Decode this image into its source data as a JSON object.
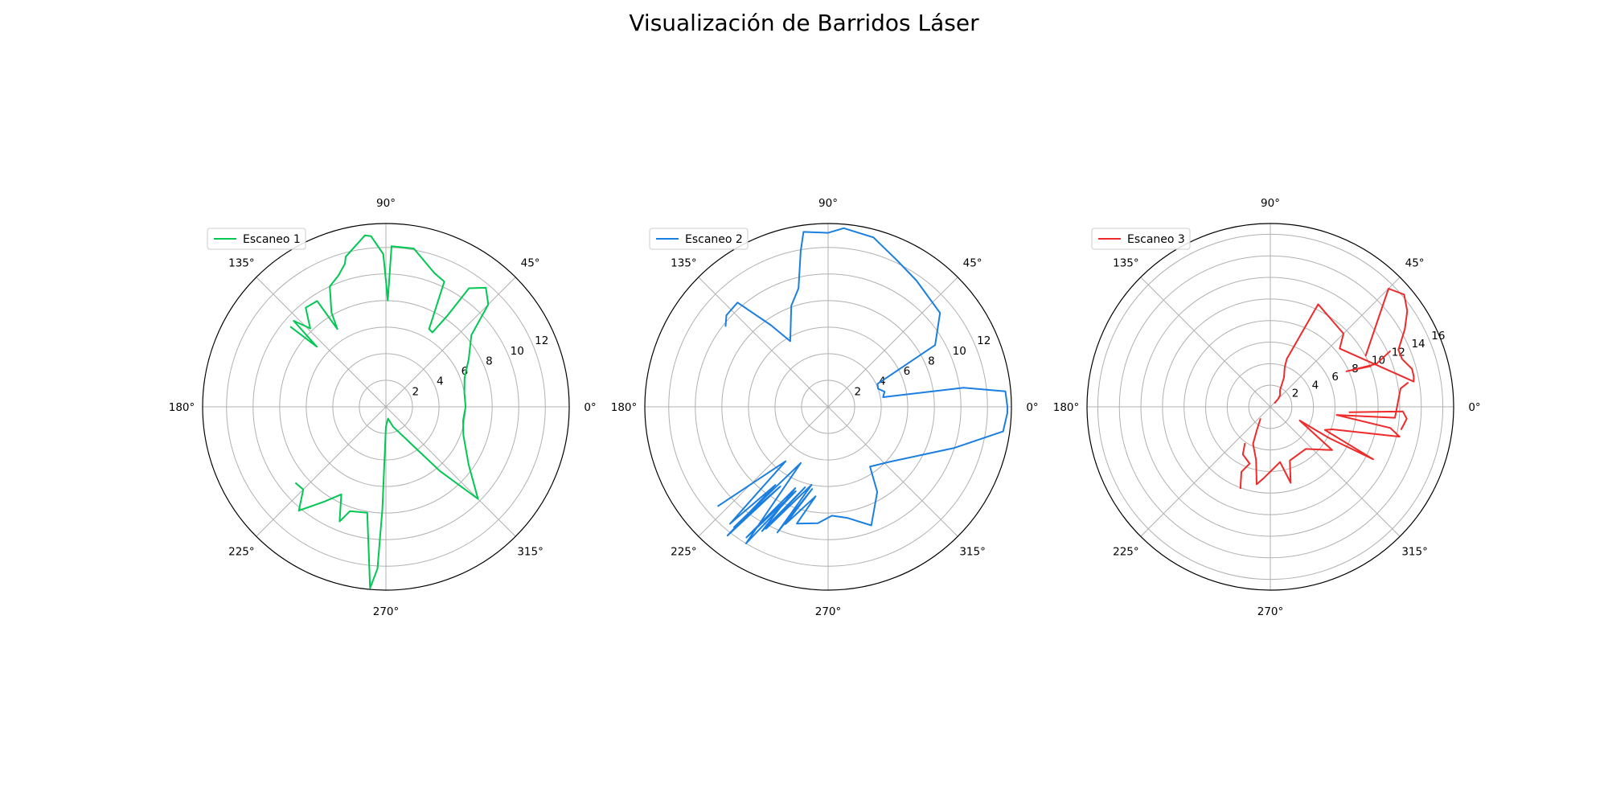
{
  "figure": {
    "title": "Visualización de Barridos Láser"
  },
  "chart_data": [
    {
      "type": "polar-line",
      "series": [
        {
          "name": "Escaneo 1",
          "color": "#00c853"
        }
      ],
      "theta_ticks": [
        "0°",
        "45°",
        "90°",
        "135°",
        "180°",
        "225°",
        "270°",
        "315°"
      ],
      "r_ticks": [
        "2",
        "4",
        "6",
        "8",
        "10",
        "12"
      ],
      "rlim": [
        0,
        13.8
      ],
      "grid": true,
      "legend": "upper-left",
      "points": [
        [
          0,
          6
        ],
        [
          10,
          6
        ],
        [
          20,
          6.3
        ],
        [
          30,
          7.2
        ],
        [
          40,
          8.4
        ],
        [
          45,
          10.9
        ],
        [
          50,
          11.7
        ],
        [
          55,
          10.9
        ],
        [
          56,
          8.3
        ],
        [
          58,
          6.6
        ],
        [
          61,
          6.7
        ],
        [
          65,
          10.4
        ],
        [
          70,
          10.7
        ],
        [
          80,
          12.1
        ],
        [
          88,
          12.1
        ],
        [
          89,
          8
        ],
        [
          90,
          9.5
        ],
        [
          91,
          11.5
        ],
        [
          95,
          12.9
        ],
        [
          97,
          13
        ],
        [
          105,
          11.7
        ],
        [
          106,
          11.2
        ],
        [
          110,
          10.5
        ],
        [
          115,
          10
        ],
        [
          120,
          8.2
        ],
        [
          122,
          6.9
        ],
        [
          123,
          9.5
        ],
        [
          129,
          9.6
        ],
        [
          134,
          8.2
        ],
        [
          137,
          9.5
        ],
        [
          139,
          6.9
        ],
        [
          140,
          9.4
        ],
        [
          null,
          null
        ],
        [
          220,
          8.9
        ],
        [
          225,
          8.8
        ],
        [
          230,
          10.2
        ],
        [
          237,
          8.5
        ],
        [
          243,
          7.4
        ],
        [
          248,
          9.3
        ],
        [
          251,
          8.3
        ],
        [
          260,
          8.1
        ],
        [
          265,
          13.7
        ],
        [
          267,
          12.2
        ],
        [
          268,
          7.7
        ],
        [
          270,
          1.5
        ],
        [
          280,
          0.9
        ],
        [
          290,
          1.6
        ],
        [
          310,
          6.3
        ],
        [
          315,
          9.8
        ],
        [
          325,
          7.6
        ],
        [
          340,
          6.2
        ],
        [
          350,
          5.9
        ],
        [
          360,
          6
        ]
      ]
    },
    {
      "type": "polar-line",
      "series": [
        {
          "name": "Escaneo 2",
          "color": "#1a7fe0"
        }
      ],
      "theta_ticks": [
        "0°",
        "45°",
        "90°",
        "135°",
        "180°",
        "225°",
        "270°",
        "315°"
      ],
      "r_ticks": [
        "2",
        "4",
        "6",
        "8",
        "10",
        "12"
      ],
      "rlim": [
        0,
        13.8
      ],
      "grid": true,
      "legend": "upper-left",
      "points": [
        [
          0,
          13.5
        ],
        [
          5,
          13.4
        ],
        [
          8,
          10.3
        ],
        [
          10,
          4.2
        ],
        [
          15,
          4.4
        ],
        [
          20,
          4
        ],
        [
          25,
          4.1
        ],
        [
          30,
          9.3
        ],
        [
          40,
          11
        ],
        [
          55,
          11.6
        ],
        [
          65,
          12.2
        ],
        [
          75,
          13.2
        ],
        [
          85,
          13.5
        ],
        [
          90,
          13.1
        ],
        [
          98,
          13.3
        ],
        [
          100,
          11.9
        ],
        [
          104,
          9.2
        ],
        [
          110,
          8.1
        ],
        [
          120,
          5.7
        ],
        [
          125,
          7.5
        ],
        [
          131,
          10.4
        ],
        [
          138,
          10.3
        ],
        [
          142,
          9.8
        ],
        [
          null,
          null
        ],
        [
          222,
          11.2
        ],
        [
          232,
          5.2
        ],
        [
          230,
          11.5
        ],
        [
          236,
          7.1
        ],
        [
          232,
          12.3
        ],
        [
          239,
          7
        ],
        [
          232,
          11.5
        ],
        [
          244,
          4.7
        ],
        [
          239,
          12
        ],
        [
          249,
          6.8
        ],
        [
          238,
          11.6
        ],
        [
          248,
          6.6
        ],
        [
          242,
          10.6
        ],
        [
          254,
          6.3
        ],
        [
          243,
          10.3
        ],
        [
          258,
          6
        ],
        [
          248,
          10.2
        ],
        [
          259,
          6.3
        ],
        [
          250,
          9.4
        ],
        [
          262,
          6.8
        ],
        [
          255,
          9.1
        ],
        [
          265,
          8.8
        ],
        [
          272,
          8.2
        ],
        [
          280,
          8.5
        ],
        [
          290,
          9.5
        ],
        [
          300,
          7.4
        ],
        [
          305,
          5.5
        ],
        [
          318,
          6.2
        ],
        [
          342,
          10
        ],
        [
          352,
          13.3
        ],
        [
          358,
          13.5
        ],
        [
          360,
          13.5
        ]
      ]
    },
    {
      "type": "polar-line",
      "series": [
        {
          "name": "Escaneo 3",
          "color": "#ee2a2a"
        }
      ],
      "theta_ticks": [
        "0°",
        "45°",
        "90°",
        "135°",
        "180°",
        "225°",
        "270°",
        "315°"
      ],
      "r_ticks": [
        "2",
        "4",
        "6",
        "8",
        "10",
        "12",
        "14",
        "16"
      ],
      "rlim": [
        0,
        17
      ],
      "grid": true,
      "legend": "upper-left",
      "points": [
        [
          null,
          null
        ],
        [
          -4,
          7.3
        ],
        [
          -2,
          12.3
        ],
        [
          -5,
          12.7
        ],
        [
          -10,
          12.3
        ],
        [
          null,
          null
        ],
        [
          10,
          13
        ],
        [
          8,
          12.2
        ],
        [
          -5,
          11.6
        ],
        [
          -7,
          6.2
        ],
        [
          -10,
          11.3
        ],
        [
          -13,
          12.3
        ],
        [
          -20,
          6.1
        ],
        [
          -23,
          5.5
        ],
        [
          -27,
          10.7
        ],
        [
          -28,
          6.2
        ],
        [
          -25,
          3
        ],
        [
          -35,
          7
        ],
        [
          -50,
          5.1
        ],
        [
          -70,
          5.3
        ],
        [
          -75,
          7.3
        ],
        [
          -80,
          5.2
        ],
        [
          -95,
          6.6
        ],
        [
          -100,
          7.3
        ],
        [
          -105,
          5.1
        ],
        [
          -115,
          3.8
        ],
        [
          -120,
          2.5
        ],
        [
          -130,
          1.4
        ],
        [
          null,
          null
        ],
        [
          -110,
          8.1
        ],
        [
          -114,
          6.6
        ],
        [
          -110,
          5.6
        ],
        [
          -120,
          5.1
        ],
        [
          -125,
          4.1
        ],
        [
          null,
          null
        ],
        [
          22,
          10.1
        ],
        [
          25,
          7.8
        ],
        [
          22,
          10.6
        ],
        [
          25,
          12.3
        ],
        [
          null,
          null
        ],
        [
          28,
          10
        ],
        [
          45,
          15.5
        ],
        [
          40,
          16.2
        ],
        [
          35,
          15.5
        ],
        [
          30,
          14.4
        ],
        [
          24,
          13
        ],
        [
          20,
          13
        ],
        [
          15,
          13.6
        ],
        [
          12,
          13.6
        ],
        [
          10,
          13.5
        ],
        [
          40,
          8.4
        ],
        [
          45,
          9.6
        ],
        [
          65,
          10.5
        ],
        [
          71,
          4.7
        ],
        [
          70,
          3.9
        ],
        [
          65,
          3
        ],
        [
          60,
          1.8
        ],
        [
          50,
          1.4
        ],
        [
          45,
          1
        ],
        [
          40,
          0.5
        ]
      ]
    }
  ]
}
